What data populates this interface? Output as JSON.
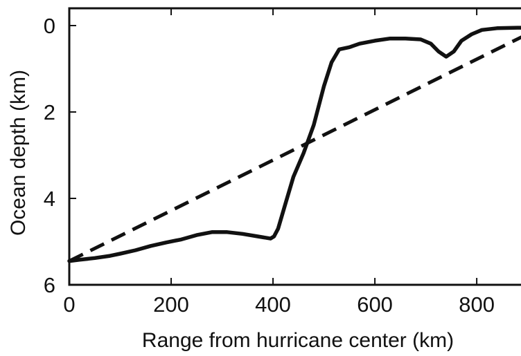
{
  "chart_data": {
    "type": "line",
    "title": "",
    "xlabel": "Range from hurricane center (km)",
    "ylabel": "Ocean depth (km)",
    "xlim": [
      0,
      925
    ],
    "ylim": [
      6,
      -0.4
    ],
    "xticks": [
      0,
      200,
      400,
      600,
      800
    ],
    "yticks": [
      0,
      2,
      4,
      6
    ],
    "xtick_labels": [
      "0",
      "200",
      "400",
      "600",
      "800"
    ],
    "ytick_labels": [
      "0",
      "2",
      "4",
      "6"
    ],
    "grid": false,
    "y_inverted": true,
    "series": [
      {
        "style": "solid",
        "color": "#111111",
        "x": [
          0,
          20,
          50,
          80,
          100,
          130,
          160,
          190,
          220,
          250,
          280,
          310,
          340,
          370,
          395,
          402,
          410,
          425,
          440,
          460,
          480,
          500,
          515,
          530,
          550,
          570,
          600,
          630,
          660,
          690,
          710,
          725,
          740,
          755,
          770,
          790,
          810,
          840,
          880,
          925
        ],
        "y": [
          5.45,
          5.42,
          5.38,
          5.33,
          5.28,
          5.2,
          5.1,
          5.02,
          4.95,
          4.85,
          4.78,
          4.78,
          4.82,
          4.88,
          4.93,
          4.88,
          4.7,
          4.1,
          3.5,
          2.95,
          2.3,
          1.4,
          0.85,
          0.55,
          0.5,
          0.42,
          0.35,
          0.3,
          0.3,
          0.32,
          0.42,
          0.6,
          0.72,
          0.6,
          0.35,
          0.2,
          0.1,
          0.06,
          0.05,
          0.05
        ]
      },
      {
        "style": "dashed",
        "color": "#111111",
        "x": [
          0,
          925
        ],
        "y": [
          5.45,
          0.05
        ]
      }
    ]
  }
}
